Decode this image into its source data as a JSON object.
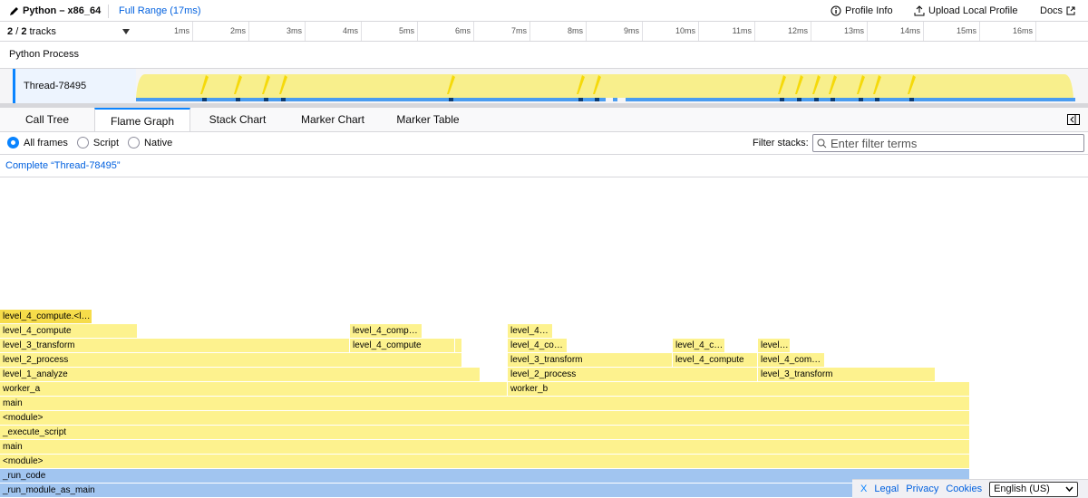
{
  "header": {
    "title": "Python – x86_64",
    "range": "Full Range (17ms)",
    "buttons": [
      "Profile Info",
      "Upload Local Profile",
      "Docs"
    ]
  },
  "tracks_count": {
    "visible": "2",
    "separator": "/",
    "total": "2",
    "label": "tracks"
  },
  "timeline": {
    "ticks": [
      {
        "value": 1,
        "label": "1ms"
      },
      {
        "value": 2,
        "label": "2ms"
      },
      {
        "value": 3,
        "label": "3ms"
      },
      {
        "value": 4,
        "label": "4ms"
      },
      {
        "value": 5,
        "label": "5ms"
      },
      {
        "value": 6,
        "label": "6ms"
      },
      {
        "value": 7,
        "label": "7ms"
      },
      {
        "value": 8,
        "label": "8ms"
      },
      {
        "value": 9,
        "label": "9ms"
      },
      {
        "value": 10,
        "label": "10ms"
      },
      {
        "value": 11,
        "label": "11ms"
      },
      {
        "value": 12,
        "label": "12ms"
      },
      {
        "value": 13,
        "label": "13ms"
      },
      {
        "value": 14,
        "label": "14ms"
      },
      {
        "value": 15,
        "label": "15ms"
      },
      {
        "value": 16,
        "label": "16ms"
      }
    ]
  },
  "tracks": {
    "process": "Python Process",
    "thread": "Thread-78495"
  },
  "tabs": [
    "Call Tree",
    "Flame Graph",
    "Stack Chart",
    "Marker Chart",
    "Marker Table"
  ],
  "radios": [
    "All frames",
    "Script",
    "Native"
  ],
  "filter": {
    "label": "Filter stacks:",
    "placeholder": "Enter filter terms"
  },
  "breadcrumb": "Complete “Thread-78495”",
  "flame_graph": {
    "rows": [
      [
        "_run_module_as_main"
      ],
      [
        "_run_code"
      ],
      [
        "<module>"
      ],
      [
        "main"
      ],
      [
        "_execute_script"
      ],
      [
        "<module>"
      ],
      [
        "main"
      ],
      [
        "worker_a",
        "worker_b"
      ],
      [
        "level_1_analyze",
        "level_2_process",
        "level_3_transform"
      ],
      [
        "level_2_process",
        "level_3_transform",
        "level_4_compute",
        "level_4_com…"
      ],
      [
        "level_3_transform",
        "level_4_compute",
        "level_4_co…",
        "level_4_c…",
        "level…"
      ],
      [
        "level_4_compute",
        "level_4_comp…",
        "level_4…"
      ],
      [
        "level_4_compute.<l…"
      ]
    ]
  },
  "footer": {
    "close": "X",
    "links": [
      "Legal",
      "Privacy",
      "Cookies"
    ],
    "language": "English (US)"
  }
}
